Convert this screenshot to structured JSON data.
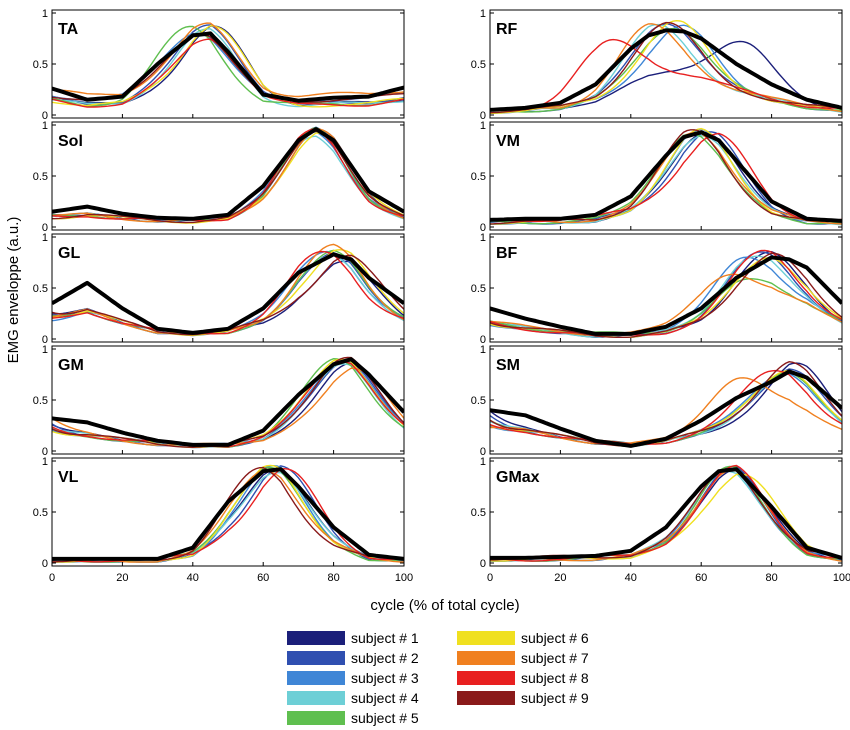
{
  "figure": {
    "ylabel": "EMG enveloppe (a.u.)",
    "xlabel": "cycle (% of total cycle)"
  },
  "legend": [
    {
      "label": "subject # 1",
      "color": "#1b1f7a"
    },
    {
      "label": "subject # 2",
      "color": "#2f4fb0"
    },
    {
      "label": "subject # 3",
      "color": "#3f86d6"
    },
    {
      "label": "subject # 4",
      "color": "#6dcfd6"
    },
    {
      "label": "subject # 5",
      "color": "#5fbf4f"
    },
    {
      "label": "subject # 6",
      "color": "#f0e020"
    },
    {
      "label": "subject # 7",
      "color": "#f08020"
    },
    {
      "label": "subject # 8",
      "color": "#e82020"
    },
    {
      "label": "subject # 9",
      "color": "#8a1a1a"
    }
  ],
  "chart_data": [
    {
      "type": "line",
      "title": "TA",
      "xlim": [
        0,
        100
      ],
      "ylim": [
        0,
        1
      ],
      "xticks": [],
      "yticks": [
        "0",
        "0.5",
        "1"
      ],
      "mean": {
        "x": [
          0,
          10,
          20,
          30,
          40,
          45,
          50,
          60,
          70,
          80,
          90,
          100
        ],
        "y": [
          0.26,
          0.15,
          0.18,
          0.5,
          0.78,
          0.8,
          0.62,
          0.2,
          0.14,
          0.17,
          0.18,
          0.27
        ]
      },
      "subjects": [
        {
          "peak": 48,
          "amp": 0.95,
          "base": 0.12
        },
        {
          "peak": 45,
          "amp": 0.96,
          "base": 0.18
        },
        {
          "peak": 40,
          "amp": 0.85,
          "base": 0.3
        },
        {
          "peak": 44,
          "amp": 0.85,
          "base": 0.1
        },
        {
          "peak": 38,
          "amp": 0.95,
          "base": 0.12
        },
        {
          "peak": 47,
          "amp": 0.98,
          "base": 0.1
        },
        {
          "peak": 44,
          "amp": 0.95,
          "base": 0.45
        },
        {
          "peak": 45,
          "amp": 0.72,
          "base": 0.1
        },
        {
          "peak": 41,
          "amp": 0.82,
          "base": 0.28
        }
      ]
    },
    {
      "type": "line",
      "title": "RF",
      "xlim": [
        0,
        100
      ],
      "ylim": [
        0,
        1
      ],
      "xticks": [],
      "yticks": [
        "0",
        "0.5",
        "1"
      ],
      "mean": {
        "x": [
          0,
          10,
          20,
          30,
          40,
          45,
          50,
          55,
          60,
          70,
          80,
          90,
          100
        ],
        "y": [
          0.05,
          0.07,
          0.12,
          0.3,
          0.65,
          0.78,
          0.83,
          0.82,
          0.75,
          0.5,
          0.3,
          0.15,
          0.07
        ]
      },
      "subjects": [
        {
          "peak": 72,
          "amp": 0.95,
          "base": 0.05
        },
        {
          "peak": 50,
          "amp": 0.98,
          "base": 0.05
        },
        {
          "peak": 55,
          "amp": 0.9,
          "base": 0.05
        },
        {
          "peak": 47,
          "amp": 0.92,
          "base": 0.05
        },
        {
          "peak": 52,
          "amp": 0.9,
          "base": 0.05
        },
        {
          "peak": 53,
          "amp": 0.98,
          "base": 0.05
        },
        {
          "peak": 45,
          "amp": 0.95,
          "base": 0.08
        },
        {
          "peak": 33,
          "amp": 0.95,
          "base": 0.1
        },
        {
          "peak": 50,
          "amp": 0.95,
          "base": 0.07
        }
      ]
    },
    {
      "type": "line",
      "title": "Sol",
      "xlim": [
        0,
        100
      ],
      "ylim": [
        0,
        1
      ],
      "xticks": [],
      "yticks": [
        "0",
        "0.5",
        "1"
      ],
      "mean": {
        "x": [
          0,
          10,
          20,
          30,
          40,
          50,
          60,
          70,
          75,
          80,
          90,
          100
        ],
        "y": [
          0.15,
          0.2,
          0.13,
          0.09,
          0.08,
          0.12,
          0.4,
          0.85,
          0.96,
          0.85,
          0.35,
          0.15
        ]
      },
      "subjects": [
        {
          "peak": 76,
          "amp": 0.97,
          "base": 0.1
        },
        {
          "peak": 75,
          "amp": 0.96,
          "base": 0.12
        },
        {
          "peak": 74,
          "amp": 0.95,
          "base": 0.1
        },
        {
          "peak": 73,
          "amp": 0.85,
          "base": 0.1
        },
        {
          "peak": 75,
          "amp": 0.96,
          "base": 0.12
        },
        {
          "peak": 77,
          "amp": 0.95,
          "base": 0.08
        },
        {
          "peak": 76,
          "amp": 0.96,
          "base": 0.1
        },
        {
          "peak": 74,
          "amp": 0.95,
          "base": 0.1
        },
        {
          "peak": 75,
          "amp": 0.96,
          "base": 0.1
        }
      ]
    },
    {
      "type": "line",
      "title": "VM",
      "xlim": [
        0,
        100
      ],
      "ylim": [
        0,
        1
      ],
      "xticks": [],
      "yticks": [
        "0",
        "0.5",
        "1"
      ],
      "mean": {
        "x": [
          0,
          10,
          20,
          30,
          40,
          50,
          55,
          60,
          65,
          70,
          80,
          90,
          100
        ],
        "y": [
          0.07,
          0.08,
          0.08,
          0.12,
          0.3,
          0.7,
          0.88,
          0.93,
          0.85,
          0.65,
          0.25,
          0.08,
          0.06
        ]
      },
      "subjects": [
        {
          "peak": 62,
          "amp": 0.96,
          "base": 0.05
        },
        {
          "peak": 63,
          "amp": 0.97,
          "base": 0.05
        },
        {
          "peak": 60,
          "amp": 0.95,
          "base": 0.05
        },
        {
          "peak": 61,
          "amp": 0.9,
          "base": 0.05
        },
        {
          "peak": 56,
          "amp": 0.95,
          "base": 0.06
        },
        {
          "peak": 60,
          "amp": 0.96,
          "base": 0.06
        },
        {
          "peak": 58,
          "amp": 0.96,
          "base": 0.08
        },
        {
          "peak": 66,
          "amp": 0.95,
          "base": 0.14
        },
        {
          "peak": 57,
          "amp": 0.96,
          "base": 0.07
        }
      ]
    },
    {
      "type": "line",
      "title": "GL",
      "xlim": [
        0,
        100
      ],
      "ylim": [
        0,
        1
      ],
      "xticks": [],
      "yticks": [
        "0",
        "0.5",
        "1"
      ],
      "mean": {
        "x": [
          0,
          10,
          20,
          30,
          40,
          50,
          60,
          70,
          80,
          85,
          90,
          100
        ],
        "y": [
          0.35,
          0.55,
          0.3,
          0.1,
          0.06,
          0.1,
          0.3,
          0.65,
          0.83,
          0.78,
          0.6,
          0.35
        ]
      },
      "subjects": [
        {
          "peak": 84,
          "amp": 0.7,
          "base": 0.1
        },
        {
          "peak": 80,
          "amp": 0.85,
          "base": 0.1
        },
        {
          "peak": 77,
          "amp": 0.95,
          "base": 0.1
        },
        {
          "peak": 78,
          "amp": 0.8,
          "base": 0.1
        },
        {
          "peak": 80,
          "amp": 0.9,
          "base": 0.1
        },
        {
          "peak": 82,
          "amp": 0.95,
          "base": 0.1
        },
        {
          "peak": 79,
          "amp": 0.98,
          "base": 0.1
        },
        {
          "peak": 76,
          "amp": 0.92,
          "base": 0.1
        },
        {
          "peak": 85,
          "amp": 0.85,
          "base": 0.12
        }
      ]
    },
    {
      "type": "line",
      "title": "BF",
      "xlim": [
        0,
        100
      ],
      "ylim": [
        0,
        1
      ],
      "xticks": [],
      "yticks": [
        "0",
        "0.5",
        "1"
      ],
      "mean": {
        "x": [
          0,
          10,
          20,
          30,
          40,
          50,
          60,
          70,
          80,
          85,
          90,
          100
        ],
        "y": [
          0.3,
          0.2,
          0.12,
          0.05,
          0.05,
          0.12,
          0.3,
          0.6,
          0.8,
          0.78,
          0.7,
          0.35
        ]
      },
      "subjects": [
        {
          "peak": 78,
          "amp": 0.9,
          "base": 0.05
        },
        {
          "peak": 76,
          "amp": 0.93,
          "base": 0.05
        },
        {
          "peak": 72,
          "amp": 0.95,
          "base": 0.05
        },
        {
          "peak": 74,
          "amp": 0.9,
          "base": 0.05
        },
        {
          "peak": 72,
          "amp": 0.5,
          "base": 0.1
        },
        {
          "peak": 78,
          "amp": 0.85,
          "base": 0.05
        },
        {
          "peak": 66,
          "amp": 0.75,
          "base": 0.1
        },
        {
          "peak": 77,
          "amp": 0.96,
          "base": 0.05
        },
        {
          "peak": 80,
          "amp": 0.9,
          "base": 0.05
        }
      ]
    },
    {
      "type": "line",
      "title": "GM",
      "xlim": [
        0,
        100
      ],
      "ylim": [
        0,
        1
      ],
      "xticks": [],
      "yticks": [
        "0",
        "0.5",
        "1"
      ],
      "mean": {
        "x": [
          0,
          10,
          20,
          30,
          40,
          50,
          60,
          70,
          80,
          85,
          90,
          100
        ],
        "y": [
          0.32,
          0.28,
          0.18,
          0.1,
          0.06,
          0.06,
          0.2,
          0.55,
          0.85,
          0.9,
          0.75,
          0.38
        ]
      },
      "subjects": [
        {
          "peak": 85,
          "amp": 0.8,
          "base": 0.1
        },
        {
          "peak": 84,
          "amp": 0.88,
          "base": 0.1
        },
        {
          "peak": 82,
          "amp": 0.9,
          "base": 0.1
        },
        {
          "peak": 82,
          "amp": 0.8,
          "base": 0.1
        },
        {
          "peak": 80,
          "amp": 0.95,
          "base": 0.1
        },
        {
          "peak": 81,
          "amp": 0.95,
          "base": 0.1
        },
        {
          "peak": 88,
          "amp": 0.75,
          "base": 0.1
        },
        {
          "peak": 82,
          "amp": 0.9,
          "base": 0.12
        },
        {
          "peak": 83,
          "amp": 0.95,
          "base": 0.1
        }
      ]
    },
    {
      "type": "line",
      "title": "SM",
      "xlim": [
        0,
        100
      ],
      "ylim": [
        0,
        1
      ],
      "xticks": [],
      "yticks": [
        "0",
        "0.5",
        "1"
      ],
      "mean": {
        "x": [
          0,
          10,
          20,
          30,
          40,
          50,
          60,
          70,
          80,
          85,
          90,
          100
        ],
        "y": [
          0.4,
          0.35,
          0.22,
          0.1,
          0.05,
          0.12,
          0.3,
          0.52,
          0.68,
          0.78,
          0.72,
          0.42
        ]
      },
      "subjects": [
        {
          "peak": 88,
          "amp": 0.92,
          "base": 0.15
        },
        {
          "peak": 86,
          "amp": 0.85,
          "base": 0.15
        },
        {
          "peak": 82,
          "amp": 0.8,
          "base": 0.15
        },
        {
          "peak": 84,
          "amp": 0.75,
          "base": 0.15
        },
        {
          "peak": 84,
          "amp": 0.8,
          "base": 0.15
        },
        {
          "peak": 83,
          "amp": 0.82,
          "base": 0.15
        },
        {
          "peak": 70,
          "amp": 0.88,
          "base": 0.15
        },
        {
          "peak": 80,
          "amp": 0.88,
          "base": 0.15
        },
        {
          "peak": 85,
          "amp": 0.95,
          "base": 0.15
        }
      ]
    },
    {
      "type": "line",
      "title": "VL",
      "xlim": [
        0,
        100
      ],
      "ylim": [
        0,
        1
      ],
      "xticks": [
        "0",
        "20",
        "40",
        "60",
        "80",
        "100"
      ],
      "yticks": [
        "0",
        "0.5",
        "1"
      ],
      "mean": {
        "x": [
          0,
          10,
          20,
          30,
          40,
          50,
          60,
          65,
          70,
          80,
          90,
          100
        ],
        "y": [
          0.04,
          0.04,
          0.04,
          0.04,
          0.15,
          0.6,
          0.9,
          0.92,
          0.75,
          0.35,
          0.08,
          0.04
        ]
      },
      "subjects": [
        {
          "peak": 64,
          "amp": 0.95,
          "base": 0.03
        },
        {
          "peak": 66,
          "amp": 0.97,
          "base": 0.03
        },
        {
          "peak": 63,
          "amp": 0.96,
          "base": 0.03
        },
        {
          "peak": 64,
          "amp": 0.9,
          "base": 0.03
        },
        {
          "peak": 61,
          "amp": 0.96,
          "base": 0.03
        },
        {
          "peak": 62,
          "amp": 0.97,
          "base": 0.03
        },
        {
          "peak": 60,
          "amp": 0.95,
          "base": 0.03
        },
        {
          "peak": 68,
          "amp": 0.95,
          "base": 0.05
        },
        {
          "peak": 58,
          "amp": 0.96,
          "base": 0.05
        }
      ]
    },
    {
      "type": "line",
      "title": "GMax",
      "xlim": [
        0,
        100
      ],
      "ylim": [
        0,
        1
      ],
      "xticks": [
        "0",
        "20",
        "40",
        "60",
        "80",
        "100"
      ],
      "yticks": [
        "0",
        "0.5",
        "1"
      ],
      "mean": {
        "x": [
          0,
          10,
          20,
          30,
          40,
          50,
          60,
          65,
          70,
          80,
          90,
          100
        ],
        "y": [
          0.05,
          0.05,
          0.06,
          0.07,
          0.12,
          0.35,
          0.75,
          0.9,
          0.92,
          0.55,
          0.15,
          0.05
        ]
      },
      "subjects": [
        {
          "peak": 70,
          "amp": 0.95,
          "base": 0.05
        },
        {
          "peak": 69,
          "amp": 0.94,
          "base": 0.05
        },
        {
          "peak": 68,
          "amp": 0.93,
          "base": 0.05
        },
        {
          "peak": 67,
          "amp": 0.92,
          "base": 0.05
        },
        {
          "peak": 68,
          "amp": 0.94,
          "base": 0.05
        },
        {
          "peak": 74,
          "amp": 0.94,
          "base": 0.05
        },
        {
          "peak": 69,
          "amp": 0.94,
          "base": 0.05
        },
        {
          "peak": 70,
          "amp": 0.95,
          "base": 0.06
        },
        {
          "peak": 68,
          "amp": 0.95,
          "base": 0.1
        }
      ]
    }
  ]
}
